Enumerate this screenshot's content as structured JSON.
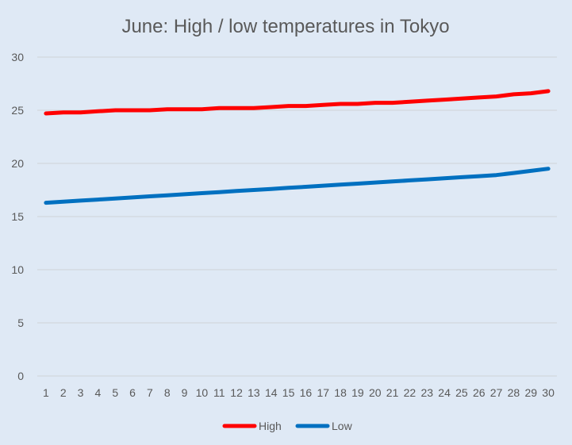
{
  "chart_data": {
    "type": "line",
    "title": "June: High / low temperatures in Tokyo",
    "xlabel": "",
    "ylabel": "",
    "x": [
      1,
      2,
      3,
      4,
      5,
      6,
      7,
      8,
      9,
      10,
      11,
      12,
      13,
      14,
      15,
      16,
      17,
      18,
      19,
      20,
      21,
      22,
      23,
      24,
      25,
      26,
      27,
      28,
      29,
      30
    ],
    "ylim": [
      0,
      30
    ],
    "yticks": [
      0,
      5,
      10,
      15,
      20,
      25,
      30
    ],
    "grid": true,
    "legend_position": "bottom",
    "series": [
      {
        "name": "High",
        "color": "#ff0000",
        "values": [
          24.7,
          24.8,
          24.8,
          24.9,
          25.0,
          25.0,
          25.0,
          25.1,
          25.1,
          25.1,
          25.2,
          25.2,
          25.2,
          25.3,
          25.4,
          25.4,
          25.5,
          25.6,
          25.6,
          25.7,
          25.7,
          25.8,
          25.9,
          26.0,
          26.1,
          26.2,
          26.3,
          26.5,
          26.6,
          26.8
        ]
      },
      {
        "name": "Low",
        "color": "#0070c0",
        "values": [
          16.3,
          16.4,
          16.5,
          16.6,
          16.7,
          16.8,
          16.9,
          17.0,
          17.1,
          17.2,
          17.3,
          17.4,
          17.5,
          17.6,
          17.7,
          17.8,
          17.9,
          18.0,
          18.1,
          18.2,
          18.3,
          18.4,
          18.5,
          18.6,
          18.7,
          18.8,
          18.9,
          19.1,
          19.3,
          19.5
        ]
      }
    ]
  }
}
